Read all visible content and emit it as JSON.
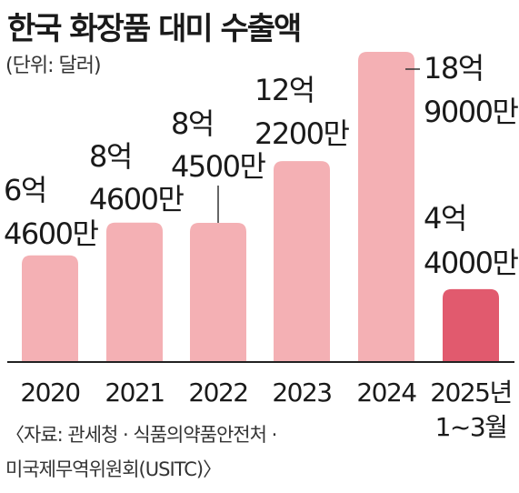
{
  "title": "한국 화장품 대미 수출액",
  "unit_label": "(단위: 달러)",
  "source_line1": "〈자료: 관세청 · 식품의약품안전처 ·",
  "source_line2": "미국제무역위원회(USITC)〉",
  "colors": {
    "bar": "#f4b0b4",
    "highlight": "#e15a6e",
    "text": "#1a1a1a",
    "axis": "#222222"
  },
  "chart_data": {
    "type": "bar",
    "title": "한국 화장품 대미 수출액",
    "unit": "달러",
    "categories": [
      "2020",
      "2021",
      "2022",
      "2023",
      "2024",
      "2025년 1~3월"
    ],
    "category_lines": [
      [
        "2020"
      ],
      [
        "2021"
      ],
      [
        "2022"
      ],
      [
        "2023"
      ],
      [
        "2024"
      ],
      [
        "2025년",
        "1~3월"
      ]
    ],
    "values": [
      646000000,
      846000000,
      845000000,
      1222000000,
      1890000000,
      440000000
    ],
    "value_labels": [
      [
        "6억",
        "4600만"
      ],
      [
        "8억",
        "4600만"
      ],
      [
        "8억",
        "4500만"
      ],
      [
        "12억",
        "2200만"
      ],
      [
        "18억",
        "9000만"
      ],
      [
        "4억",
        "4000만"
      ]
    ],
    "highlight_index": 5,
    "ylim": [
      0,
      1890000000
    ],
    "grid": false,
    "legend": "none"
  }
}
